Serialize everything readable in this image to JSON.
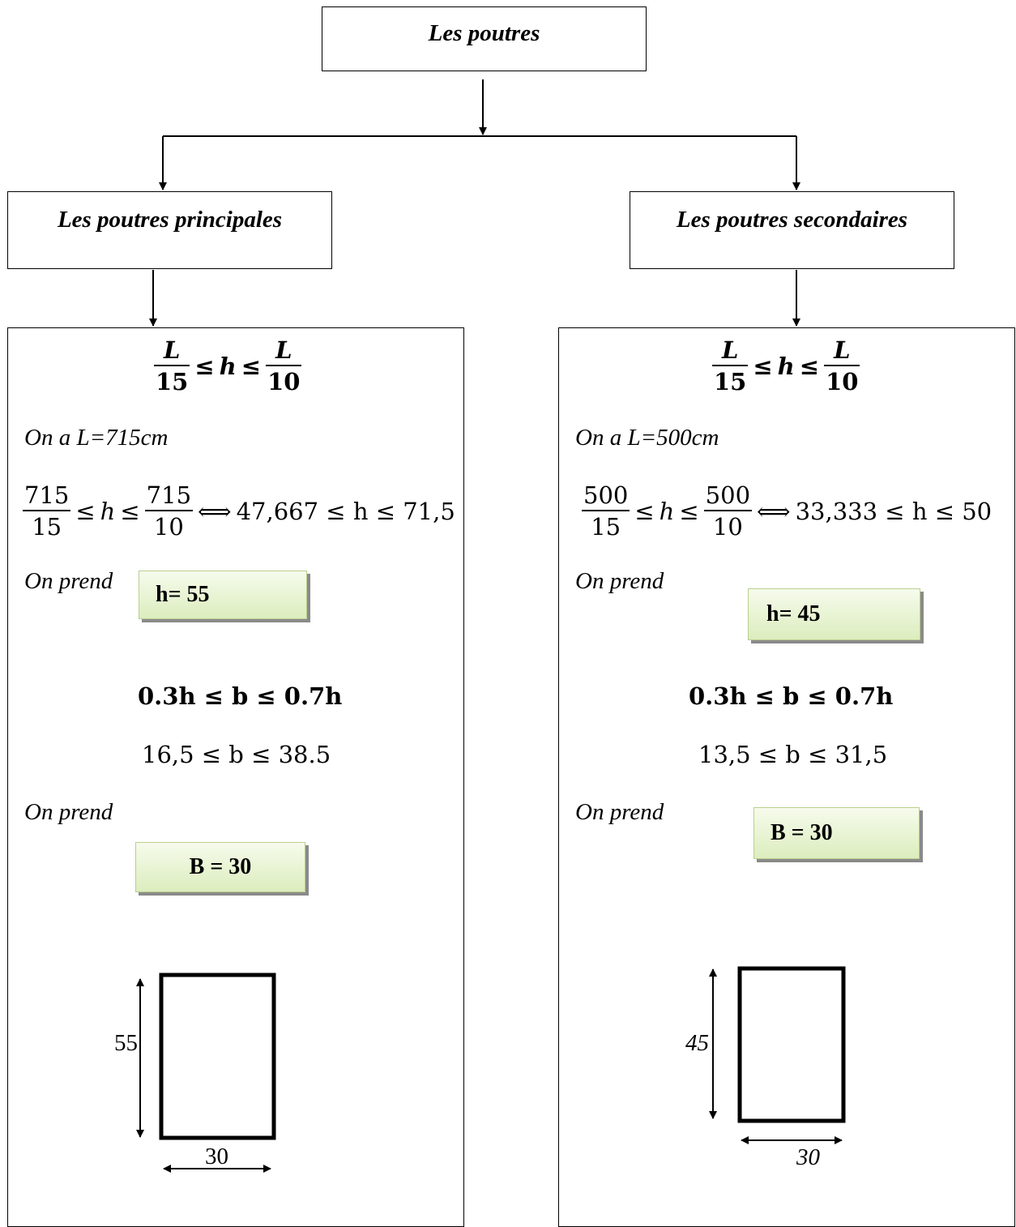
{
  "root": {
    "title": "Les poutres"
  },
  "left": {
    "title": "Les poutres principales",
    "formula_h": {
      "num": "L",
      "den1": "15",
      "rel1": "≤",
      "var": "h",
      "rel2": "≤",
      "den2": "10"
    },
    "on_a": "On a L=715cm",
    "calc_h": {
      "num1": "715",
      "den1": "15",
      "le1": "≤",
      "var": "h",
      "le2": "≤",
      "num2": "715",
      "den2": "10",
      "equiv": "⟺",
      "rhs": "47,667 ≤ h ≤ 71,5"
    },
    "on_prend_1": "On prend",
    "result_h": "h= 55",
    "formula_b": "0.3h ≤ b ≤ 0.7h",
    "calc_b": "16,5 ≤ b ≤ 38.5",
    "on_prend_2": "On prend",
    "result_b": "B = 30",
    "dim_height": "55",
    "dim_width": "30"
  },
  "right": {
    "title": "Les poutres secondaires",
    "formula_h": {
      "num": "L",
      "den1": "15",
      "rel1": "≤",
      "var": "h",
      "rel2": "≤",
      "den2": "10"
    },
    "on_a": "On a L=500cm",
    "calc_h": {
      "num1": "500",
      "den1": "15",
      "le1": "≤",
      "var": "h",
      "le2": "≤",
      "num2": "500",
      "den2": "10",
      "equiv": "⟺",
      "rhs": "33,333 ≤ h ≤ 50"
    },
    "on_prend_1": "On prend",
    "result_h": "h= 45",
    "formula_b": "0.3h ≤ b ≤ 0.7h",
    "calc_b": "13,5 ≤ b ≤ 31,5",
    "on_prend_2": "On prend",
    "result_b": "B = 30",
    "dim_height": "45",
    "dim_width": "30"
  }
}
